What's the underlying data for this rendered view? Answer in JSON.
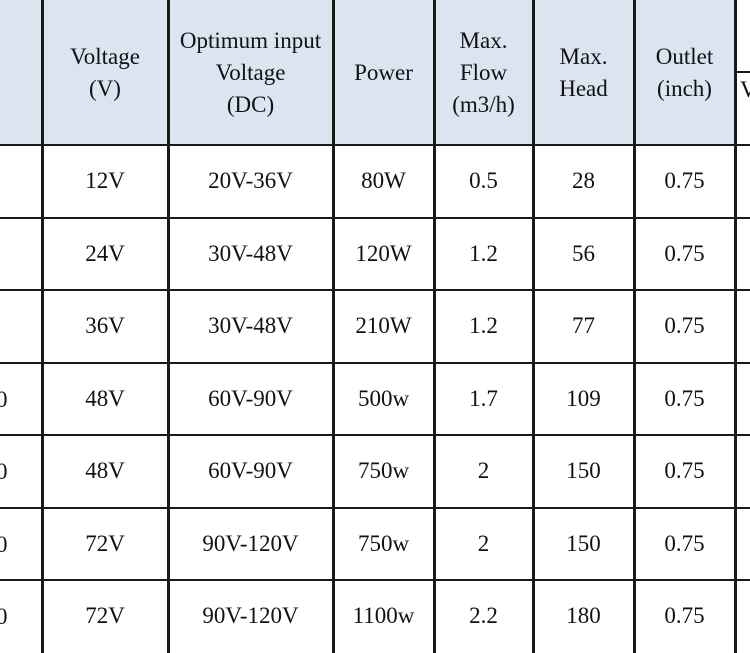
{
  "table": {
    "headers": [
      {
        "key": "voltage",
        "lines": [
          "Voltage",
          "(V)"
        ]
      },
      {
        "key": "optimum_input",
        "lines": [
          "Optimum input",
          "Voltage",
          "(DC)"
        ]
      },
      {
        "key": "power",
        "lines": [
          "Power"
        ]
      },
      {
        "key": "max_flow",
        "lines": [
          "Max.",
          "Flow",
          "(m3/h)"
        ]
      },
      {
        "key": "max_head",
        "lines": [
          "Max.",
          "Head"
        ]
      },
      {
        "key": "outlet",
        "lines": [
          "Outlet",
          "(inch)"
        ]
      }
    ],
    "partial_header_text": "V",
    "rows": [
      {
        "left_fragment": "",
        "cells": [
          "12V",
          "20V-36V",
          "80W",
          "0.5",
          "28",
          "0.75"
        ]
      },
      {
        "left_fragment": "",
        "cells": [
          "24V",
          "30V-48V",
          "120W",
          "1.2",
          "56",
          "0.75"
        ]
      },
      {
        "left_fragment": "",
        "cells": [
          "36V",
          "30V-48V",
          "210W",
          "1.2",
          "77",
          "0.75"
        ]
      },
      {
        "left_fragment": "0",
        "cells": [
          "48V",
          "60V-90V",
          "500w",
          "1.7",
          "109",
          "0.75"
        ]
      },
      {
        "left_fragment": "0",
        "cells": [
          "48V",
          "60V-90V",
          "750w",
          "2",
          "150",
          "0.75"
        ]
      },
      {
        "left_fragment": "0",
        "cells": [
          "72V",
          "90V-120V",
          "750w",
          "2",
          "150",
          "0.75"
        ]
      },
      {
        "left_fragment": "0",
        "cells": [
          "72V",
          "90V-120V",
          "1100w",
          "2.2",
          "180",
          "0.75"
        ]
      }
    ]
  },
  "colors": {
    "header_background": "#dbe4f1",
    "grid_lines": "#1a1a1a",
    "text": "#111111"
  }
}
